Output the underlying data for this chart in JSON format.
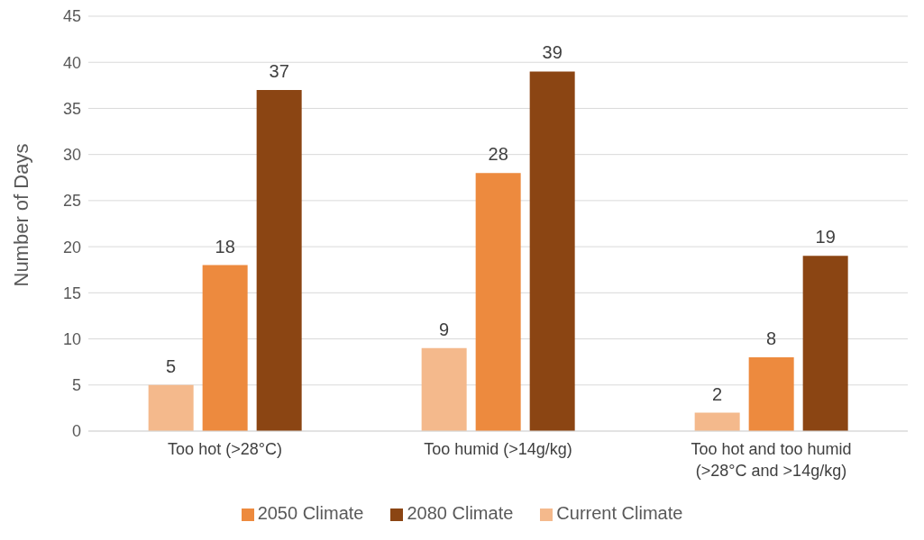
{
  "chart_data": {
    "type": "bar",
    "ylabel": "Number of Days",
    "categories": [
      "Too hot (>28°C)",
      "Too humid (>14g/kg)",
      "Too hot and too humid\n(>28°C and >14g/kg)"
    ],
    "series": [
      {
        "name": "Current Climate",
        "color": "#f4b98c",
        "values": [
          5,
          9,
          2
        ]
      },
      {
        "name": "2050 Climate",
        "color": "#ed8a3e",
        "values": [
          18,
          28,
          8
        ]
      },
      {
        "name": "2080 Climate",
        "color": "#8b4513",
        "values": [
          37,
          39,
          19
        ]
      }
    ],
    "ylim": [
      0,
      45
    ],
    "yticks": [
      0,
      5,
      10,
      15,
      20,
      25,
      30,
      35,
      40,
      45
    ],
    "grid": "y",
    "legend": "bottom",
    "data_labels": true
  }
}
